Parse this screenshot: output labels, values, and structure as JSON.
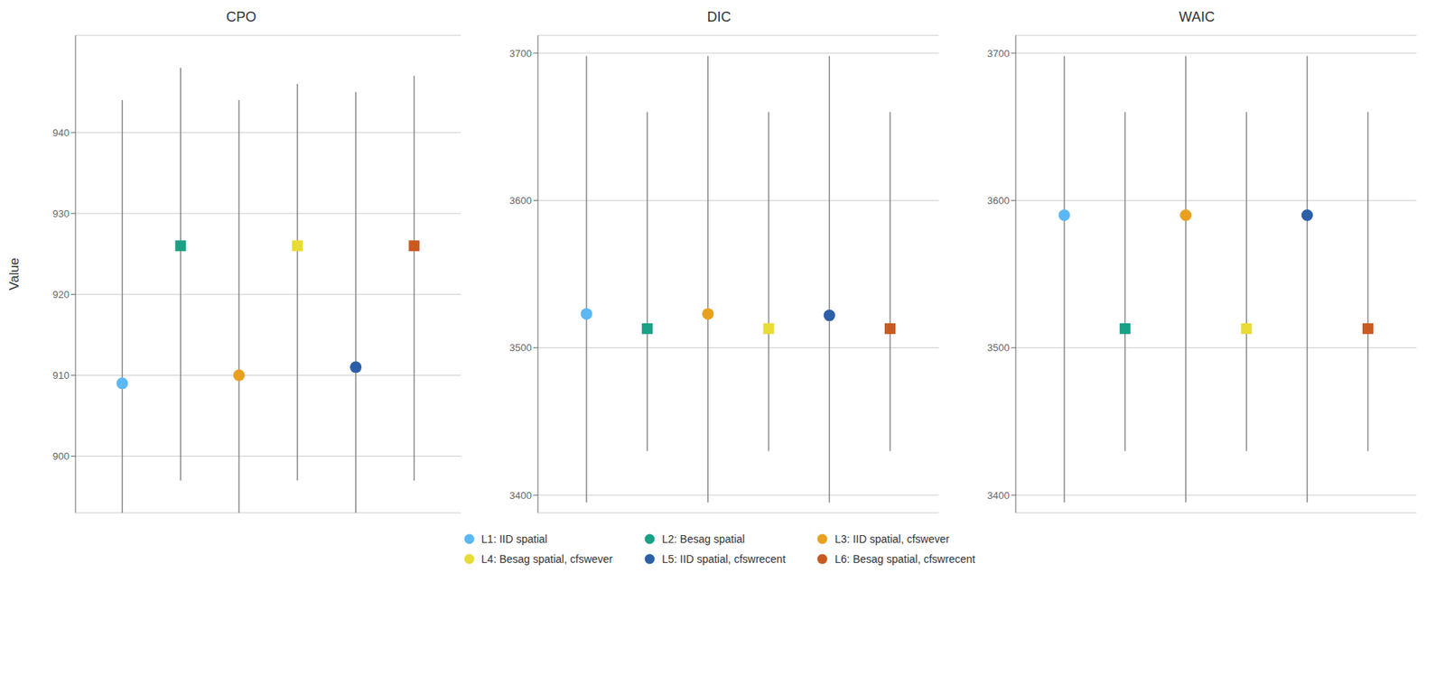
{
  "chart_data": [
    {
      "type": "scatter",
      "title": "CPO",
      "ylabel": "Value",
      "ylim": [
        893,
        952
      ],
      "yticks": [
        900,
        910,
        920,
        930,
        940
      ],
      "grid": true,
      "tick_labels": "y",
      "legend": "bottom",
      "series": [
        {
          "name": "L1: IID spatial",
          "color": "#5BB8F5",
          "marker": "circle",
          "values": [
            909
          ],
          "lower": [
            893
          ],
          "upper": [
            944
          ]
        },
        {
          "name": "L2: Besag spatial",
          "color": "#1AA085",
          "marker": "square",
          "values": [
            926
          ],
          "lower": [
            897
          ],
          "upper": [
            948
          ]
        },
        {
          "name": "L3: IID spatial, cfswever",
          "color": "#E8A020",
          "marker": "circle",
          "values": [
            910
          ],
          "lower": [
            893
          ],
          "upper": [
            944
          ]
        },
        {
          "name": "L4: Besag spatial, cfswever",
          "color": "#E8DC35",
          "marker": "square",
          "values": [
            926
          ],
          "lower": [
            897
          ],
          "upper": [
            946
          ]
        },
        {
          "name": "L5: IID spatial, cfswrecent",
          "color": "#2C5FA8",
          "marker": "circle",
          "values": [
            911
          ],
          "lower": [
            893
          ],
          "upper": [
            945
          ]
        },
        {
          "name": "L6: Besag spatial, cfswrecent",
          "color": "#C85A20",
          "marker": "square",
          "values": [
            926
          ],
          "lower": [
            897
          ],
          "upper": [
            947
          ]
        }
      ]
    },
    {
      "type": "scatter",
      "title": "DIC",
      "ylim": [
        3388,
        3712
      ],
      "yticks": [
        3400,
        3500,
        3600,
        3700
      ],
      "grid": true,
      "tick_labels": "y",
      "legend": "bottom",
      "series": [
        {
          "name": "L1: IID spatial",
          "color": "#5BB8F5",
          "marker": "circle",
          "values": [
            3523
          ],
          "lower": [
            3395
          ],
          "upper": [
            3698
          ]
        },
        {
          "name": "L2: Besag spatial",
          "color": "#1AA085",
          "marker": "square",
          "values": [
            3513
          ],
          "lower": [
            3430
          ],
          "upper": [
            3660
          ]
        },
        {
          "name": "L3: IID spatial, cfswever",
          "color": "#E8A020",
          "marker": "circle",
          "values": [
            3523
          ],
          "lower": [
            3395
          ],
          "upper": [
            3698
          ]
        },
        {
          "name": "L4: Besag spatial, cfswever",
          "color": "#E8DC35",
          "marker": "square",
          "values": [
            3513
          ],
          "lower": [
            3430
          ],
          "upper": [
            3660
          ]
        },
        {
          "name": "L5: IID spatial, cfswrecent",
          "color": "#2C5FA8",
          "marker": "circle",
          "values": [
            3522
          ],
          "lower": [
            3395
          ],
          "upper": [
            3698
          ]
        },
        {
          "name": "L6: Besag spatial, cfswrecent",
          "color": "#C85A20",
          "marker": "square",
          "values": [
            3513
          ],
          "lower": [
            3430
          ],
          "upper": [
            3660
          ]
        }
      ]
    },
    {
      "type": "scatter",
      "title": "WAIC",
      "ylim": [
        3388,
        3712
      ],
      "yticks": [
        3400,
        3500,
        3600,
        3700
      ],
      "grid": true,
      "tick_labels": "y",
      "legend": "bottom",
      "series": [
        {
          "name": "L1: IID spatial",
          "color": "#5BB8F5",
          "marker": "circle",
          "values": [
            3590
          ],
          "lower": [
            3395
          ],
          "upper": [
            3698
          ]
        },
        {
          "name": "L2: Besag spatial",
          "color": "#1AA085",
          "marker": "square",
          "values": [
            3513
          ],
          "lower": [
            3430
          ],
          "upper": [
            3660
          ]
        },
        {
          "name": "L3: IID spatial, cfswever",
          "color": "#E8A020",
          "marker": "circle",
          "values": [
            3590
          ],
          "lower": [
            3395
          ],
          "upper": [
            3698
          ]
        },
        {
          "name": "L4: Besag spatial, cfswever",
          "color": "#E8DC35",
          "marker": "square",
          "values": [
            3513
          ],
          "lower": [
            3430
          ],
          "upper": [
            3660
          ]
        },
        {
          "name": "L5: IID spatial, cfswrecent",
          "color": "#2C5FA8",
          "marker": "circle",
          "values": [
            3590
          ],
          "lower": [
            3395
          ],
          "upper": [
            3698
          ]
        },
        {
          "name": "L6: Besag spatial, cfswrecent",
          "color": "#C85A20",
          "marker": "square",
          "values": [
            3513
          ],
          "lower": [
            3430
          ],
          "upper": [
            3660
          ]
        }
      ]
    }
  ]
}
